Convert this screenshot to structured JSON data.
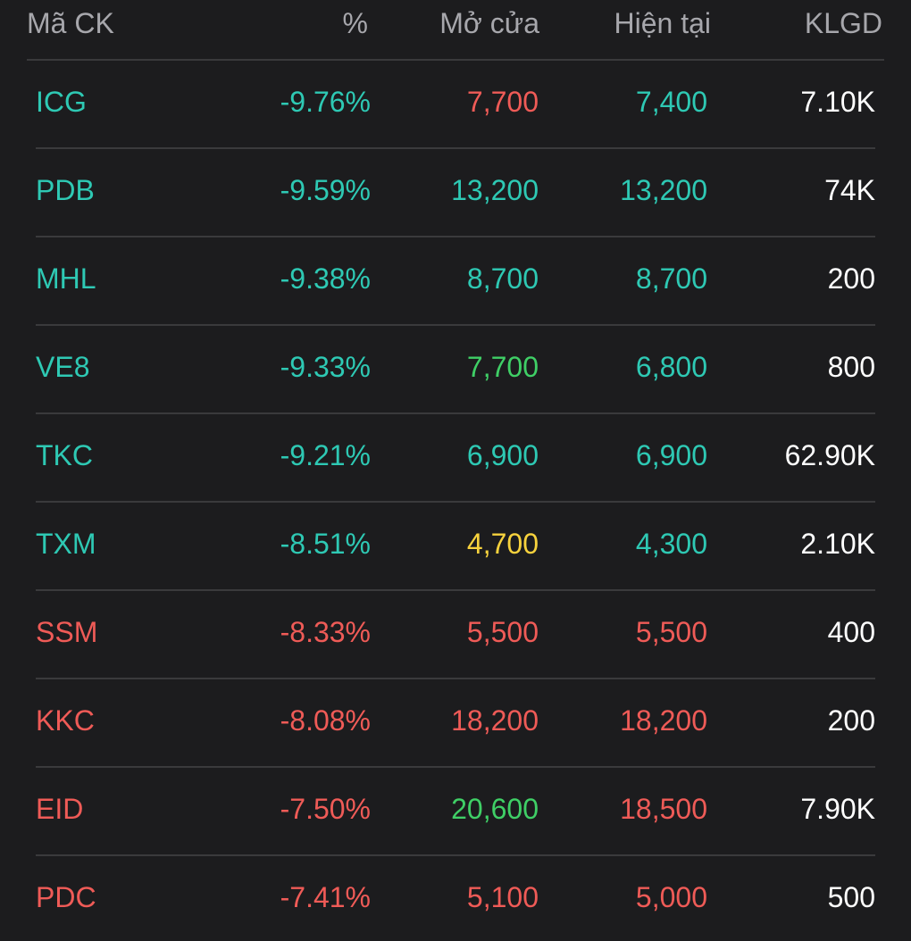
{
  "colors": {
    "background": "#1c1c1e",
    "header_text": "#a7a7ac",
    "divider": "#3a3a3c",
    "teal": "#2ec9b4",
    "red": "#ef5b57",
    "green": "#3fcf66",
    "yellow": "#f7d23d",
    "white": "#ffffff"
  },
  "header": {
    "symbol": "Mã CK",
    "percent": "%",
    "open": "Mở cửa",
    "current": "Hiện tại",
    "volume": "KLGD"
  },
  "rows": [
    {
      "symbol": "ICG",
      "percent": "-9.76%",
      "open": "7,700",
      "current": "7,400",
      "volume": "7.10K",
      "symbol_color": "teal",
      "percent_color": "teal",
      "open_color": "red",
      "current_color": "teal"
    },
    {
      "symbol": "PDB",
      "percent": "-9.59%",
      "open": "13,200",
      "current": "13,200",
      "volume": "74K",
      "symbol_color": "teal",
      "percent_color": "teal",
      "open_color": "teal",
      "current_color": "teal"
    },
    {
      "symbol": "MHL",
      "percent": "-9.38%",
      "open": "8,700",
      "current": "8,700",
      "volume": "200",
      "symbol_color": "teal",
      "percent_color": "teal",
      "open_color": "teal",
      "current_color": "teal"
    },
    {
      "symbol": "VE8",
      "percent": "-9.33%",
      "open": "7,700",
      "current": "6,800",
      "volume": "800",
      "symbol_color": "teal",
      "percent_color": "teal",
      "open_color": "green",
      "current_color": "teal"
    },
    {
      "symbol": "TKC",
      "percent": "-9.21%",
      "open": "6,900",
      "current": "6,900",
      "volume": "62.90K",
      "symbol_color": "teal",
      "percent_color": "teal",
      "open_color": "teal",
      "current_color": "teal"
    },
    {
      "symbol": "TXM",
      "percent": "-8.51%",
      "open": "4,700",
      "current": "4,300",
      "volume": "2.10K",
      "symbol_color": "teal",
      "percent_color": "teal",
      "open_color": "yellow",
      "current_color": "teal"
    },
    {
      "symbol": "SSM",
      "percent": "-8.33%",
      "open": "5,500",
      "current": "5,500",
      "volume": "400",
      "symbol_color": "red",
      "percent_color": "red",
      "open_color": "red",
      "current_color": "red"
    },
    {
      "symbol": "KKC",
      "percent": "-8.08%",
      "open": "18,200",
      "current": "18,200",
      "volume": "200",
      "symbol_color": "red",
      "percent_color": "red",
      "open_color": "red",
      "current_color": "red"
    },
    {
      "symbol": "EID",
      "percent": "-7.50%",
      "open": "20,600",
      "current": "18,500",
      "volume": "7.90K",
      "symbol_color": "red",
      "percent_color": "red",
      "open_color": "green",
      "current_color": "red"
    },
    {
      "symbol": "PDC",
      "percent": "-7.41%",
      "open": "5,100",
      "current": "5,000",
      "volume": "500",
      "symbol_color": "red",
      "percent_color": "red",
      "open_color": "red",
      "current_color": "red"
    }
  ]
}
